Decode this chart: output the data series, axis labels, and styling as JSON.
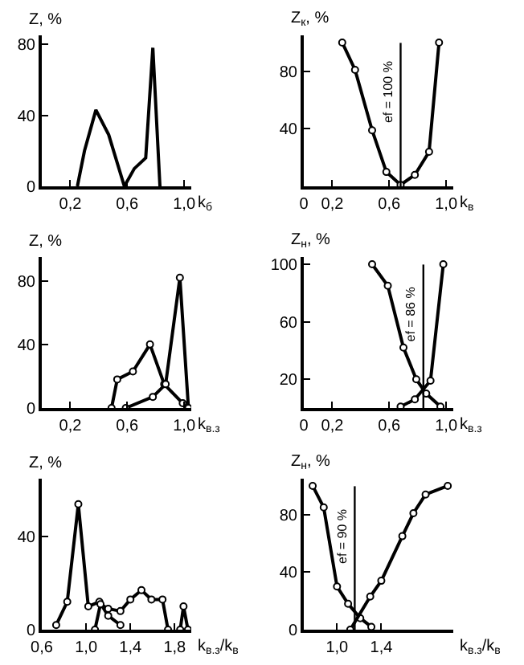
{
  "chart_data": [
    {
      "type": "line",
      "ylabel": "Z, %",
      "xlabel": "k$_{б}$",
      "xlim": [
        0,
        1.05
      ],
      "ylim": [
        0,
        85
      ],
      "xticks": [
        {
          "value": 0.2,
          "label": "0,2"
        },
        {
          "value": 0.6,
          "label": "0,6"
        },
        {
          "value": 1.0,
          "label": "1,0"
        }
      ],
      "yticks": [
        0,
        40,
        80
      ],
      "grid": false,
      "marker": "none",
      "series": [
        {
          "color": "#000000",
          "x": [
            0.25,
            0.3,
            0.38,
            0.47,
            0.58,
            0.65,
            0.73,
            0.78,
            0.83
          ],
          "values": [
            0,
            20,
            43,
            29,
            0,
            10,
            16,
            78,
            0
          ]
        }
      ]
    },
    {
      "type": "line",
      "ylabel": "Z$_{к}$, %",
      "xlabel": "k$_{в}$",
      "xlim": [
        0,
        1.05
      ],
      "ylim": [
        0,
        105
      ],
      "xticks": [
        0,
        {
          "value": 0.2,
          "label": "0,2"
        },
        {
          "value": 0.6,
          "label": "0,6"
        },
        {
          "value": 1.0,
          "label": "1,0"
        }
      ],
      "yticks": [
        40,
        80
      ],
      "grid": false,
      "marker": "circle",
      "ref_lines": [
        {
          "axis": "x",
          "value": 0.68
        }
      ],
      "annotations": [
        {
          "text": "ef = 100 %",
          "x": 0.68,
          "y": 65
        }
      ],
      "series": [
        {
          "color": "#000000",
          "x": [
            0.27,
            0.36,
            0.48,
            0.58,
            0.68,
            0.78,
            0.88,
            0.95
          ],
          "values": [
            100,
            81,
            39,
            10,
            1,
            8,
            24,
            100
          ]
        }
      ]
    },
    {
      "type": "line",
      "ylabel": "Z, %",
      "xlabel": "k$_{в.з}$",
      "xlim": [
        0,
        1.05
      ],
      "ylim": [
        0,
        95
      ],
      "xticks": [
        {
          "value": 0.2,
          "label": "0,2"
        },
        {
          "value": 0.6,
          "label": "0,6"
        },
        {
          "value": 1.0,
          "label": "1,0"
        }
      ],
      "yticks": [
        0,
        40,
        80
      ],
      "grid": false,
      "marker": "circle",
      "series": [
        {
          "color": "#000000",
          "x": [
            0.49,
            0.53,
            0.64,
            0.76,
            0.86,
            0.99
          ],
          "values": [
            0,
            18,
            23,
            40,
            15,
            3
          ]
        },
        {
          "color": "#000000",
          "x": [
            0.59,
            0.78,
            0.87,
            0.97,
            1.03
          ],
          "values": [
            0,
            7,
            15,
            82,
            0
          ]
        }
      ]
    },
    {
      "type": "line",
      "ylabel": "Z$_{н}$, %",
      "xlabel": "k$_{в.з}$",
      "xlim": [
        0,
        1.05
      ],
      "ylim": [
        0,
        105
      ],
      "xticks": [
        0,
        {
          "value": 0.2,
          "label": "0,2"
        },
        {
          "value": 0.6,
          "label": "0,6"
        },
        {
          "value": 1.0,
          "label": "1,0"
        }
      ],
      "yticks": [
        20,
        60,
        100
      ],
      "grid": false,
      "marker": "circle",
      "ref_lines": [
        {
          "axis": "x",
          "value": 0.84
        }
      ],
      "annotations": [
        {
          "text": "ef = 86 %",
          "x": 0.84,
          "y": 65
        }
      ],
      "series": [
        {
          "color": "#000000",
          "x": [
            0.48,
            0.59,
            0.7,
            0.79,
            0.86,
            0.96
          ],
          "values": [
            100,
            85,
            42,
            20,
            10,
            1
          ]
        },
        {
          "color": "#000000",
          "x": [
            0.68,
            0.78,
            0.89,
            0.98
          ],
          "values": [
            1,
            6,
            19,
            100
          ]
        }
      ]
    },
    {
      "type": "line",
      "ylabel": "Z, %",
      "xlabel": "k$_{в.з}$/k$_{в}$",
      "xlim": [
        0.6,
        1.95
      ],
      "ylim": [
        0,
        65
      ],
      "xticks": [
        {
          "value": 0.6,
          "label": "0,6"
        },
        {
          "value": 1.0,
          "label": "1,0"
        },
        {
          "value": 1.4,
          "label": "1,4"
        },
        {
          "value": 1.8,
          "label": "1,8"
        }
      ],
      "yticks": [
        0,
        40
      ],
      "grid": false,
      "marker": "circle",
      "series": [
        {
          "color": "#000000",
          "x": [
            0.73,
            0.83,
            0.93,
            1.02,
            1.12,
            1.2,
            1.31
          ],
          "values": [
            2,
            12,
            54,
            10,
            12,
            6,
            2
          ]
        },
        {
          "color": "#000000",
          "x": [
            1.08,
            1.13,
            1.2,
            1.31,
            1.4,
            1.5,
            1.59,
            1.69,
            1.74,
            1.8,
            1.85,
            1.88,
            1.92
          ],
          "values": [
            0,
            11,
            9,
            8,
            13,
            17,
            13,
            13,
            0,
            null,
            0,
            10,
            0
          ]
        }
      ]
    },
    {
      "type": "line",
      "ylabel": "Z$_{н}$, %",
      "xlabel": "k$_{в.з}$/k$_{в}$",
      "xlim": [
        0.7,
        2.05
      ],
      "ylim": [
        0,
        105
      ],
      "xticks": [
        {
          "value": 1.0,
          "label": "1,0"
        },
        {
          "value": 1.4,
          "label": "1,4"
        }
      ],
      "yticks": [
        0,
        40,
        80
      ],
      "grid": false,
      "marker": "circle",
      "ref_lines": [
        {
          "axis": "x",
          "value": 1.16
        }
      ],
      "annotations": [
        {
          "text": "ef = 90 %",
          "x": 1.16,
          "y": 65
        }
      ],
      "series": [
        {
          "color": "#000000",
          "x": [
            0.78,
            0.88,
            1.0,
            1.1,
            1.21,
            1.31
          ],
          "values": [
            100,
            85,
            30,
            18,
            8,
            2
          ]
        },
        {
          "color": "#000000",
          "x": [
            1.12,
            1.3,
            1.4,
            1.59,
            1.69,
            1.8,
            2.0
          ],
          "values": [
            0,
            23,
            34,
            65,
            81,
            94,
            100
          ]
        }
      ]
    }
  ]
}
